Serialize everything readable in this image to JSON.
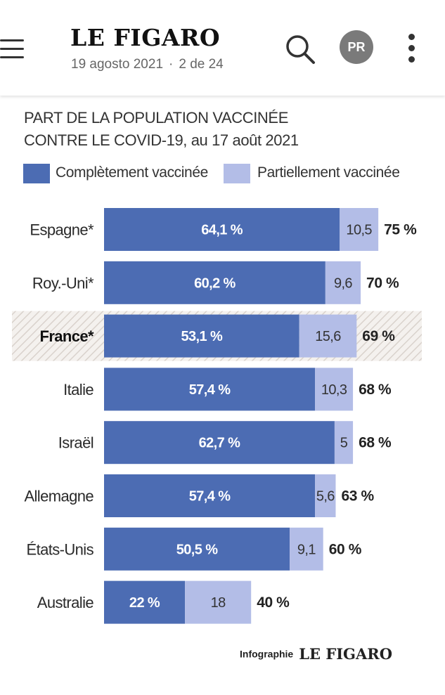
{
  "header": {
    "brand": "LE FIGARO",
    "date": "19 agosto 2021",
    "separator": "·",
    "position": "2 de 24",
    "avatar_initials": "PR",
    "icons": [
      "hamburger-icon",
      "search-icon",
      "more-vertical-icon"
    ]
  },
  "colors": {
    "fully": "#4c6cb3",
    "partially": "#b3bde7",
    "highlight_hatch": "#d9d2cc"
  },
  "chart_data": {
    "type": "bar",
    "orientation": "horizontal",
    "stacked": true,
    "title_line1": "PART DE LA POPULATION VACCINÉE",
    "title_line2": "CONTRE LE COVID-19, au 17 août 2021",
    "legend": [
      "Complètement vaccinée",
      "Partiellement vaccinée"
    ],
    "categories": [
      "Espagne*",
      "Roy.-Uni*",
      "France*",
      "Italie",
      "Israël",
      "Allemagne",
      "États-Unis",
      "Australie"
    ],
    "highlight": "France*",
    "series": [
      {
        "name": "Complètement vaccinée",
        "values": [
          64.1,
          60.2,
          53.1,
          57.4,
          62.7,
          57.4,
          50.5,
          22
        ],
        "labels": [
          "64,1 %",
          "60,2 %",
          "53,1 %",
          "57,4 %",
          "62,7 %",
          "57,4 %",
          "50,5 %",
          "22 %"
        ]
      },
      {
        "name": "Partiellement vaccinée",
        "values": [
          10.5,
          9.6,
          15.6,
          10.3,
          5,
          5.6,
          9.1,
          18
        ],
        "labels": [
          "10,5",
          "9,6",
          "15,6",
          "10,3",
          "5",
          "5,6",
          "9,1",
          "18"
        ]
      }
    ],
    "totals": [
      "75 %",
      "70 %",
      "69 %",
      "68 %",
      "68 %",
      "63 %",
      "60 %",
      "40 %"
    ],
    "xlim": [
      0,
      100
    ],
    "source": "Infographie",
    "source_brand": "LE FIGARO"
  }
}
